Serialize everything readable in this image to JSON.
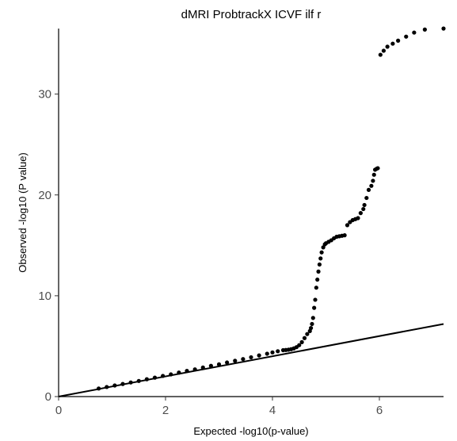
{
  "chart_data": {
    "type": "scatter",
    "title": "dMRI ProbtrackX ICVF ilf r",
    "xlabel": "Expected -log10(p-value)",
    "ylabel": "Observed -log10 (P value)",
    "xlim": [
      0,
      7.2
    ],
    "ylim": [
      0,
      36.5
    ],
    "x_ticks": [
      "0",
      "2",
      "4",
      "6"
    ],
    "y_ticks": [
      "0",
      "10",
      "20",
      "30"
    ],
    "grid": false,
    "reference_line": {
      "x": [
        0,
        7.2
      ],
      "y": [
        0,
        7.2
      ]
    },
    "series": [
      {
        "x": [
          0.75,
          0.9,
          1.05,
          1.2,
          1.35,
          1.5,
          1.65,
          1.8,
          1.95,
          2.1,
          2.25,
          2.4,
          2.55,
          2.7,
          2.85,
          3.0,
          3.15,
          3.3,
          3.45,
          3.6,
          3.75,
          3.9,
          4.0,
          4.1,
          4.2,
          4.25,
          4.3,
          4.35,
          4.4,
          4.45,
          4.5,
          4.55,
          4.6,
          4.65,
          4.7,
          4.72,
          4.74,
          4.76,
          4.78,
          4.8,
          4.82,
          4.84,
          4.86,
          4.88,
          4.9,
          4.92,
          4.95,
          4.98,
          5.0,
          5.05,
          5.1,
          5.15,
          5.2,
          5.25,
          5.3,
          5.35,
          5.4,
          5.45,
          5.5,
          5.55,
          5.6,
          5.65,
          5.7,
          5.72,
          5.76,
          5.8,
          5.85,
          5.88,
          5.9,
          5.92,
          5.95,
          5.97,
          6.02,
          6.08,
          6.15,
          6.25,
          6.35,
          6.5,
          6.65,
          6.85,
          7.2
        ],
        "y": [
          0.8,
          0.95,
          1.1,
          1.25,
          1.4,
          1.55,
          1.72,
          1.88,
          2.05,
          2.2,
          2.38,
          2.55,
          2.7,
          2.88,
          3.05,
          3.2,
          3.38,
          3.55,
          3.72,
          3.9,
          4.08,
          4.25,
          4.38,
          4.5,
          4.6,
          4.62,
          4.65,
          4.7,
          4.78,
          4.9,
          5.1,
          5.4,
          5.8,
          6.2,
          6.5,
          6.8,
          7.2,
          7.8,
          8.8,
          9.6,
          10.8,
          11.6,
          12.4,
          13.1,
          13.7,
          14.3,
          14.8,
          15.1,
          15.2,
          15.35,
          15.5,
          15.7,
          15.85,
          15.9,
          15.95,
          16.0,
          17.0,
          17.3,
          17.5,
          17.6,
          17.7,
          18.2,
          18.6,
          19.0,
          19.7,
          20.5,
          20.9,
          21.4,
          22.0,
          22.5,
          22.6,
          22.65,
          33.9,
          34.3,
          34.7,
          35.0,
          35.3,
          35.7,
          36.1,
          36.4,
          36.5
        ]
      }
    ]
  }
}
